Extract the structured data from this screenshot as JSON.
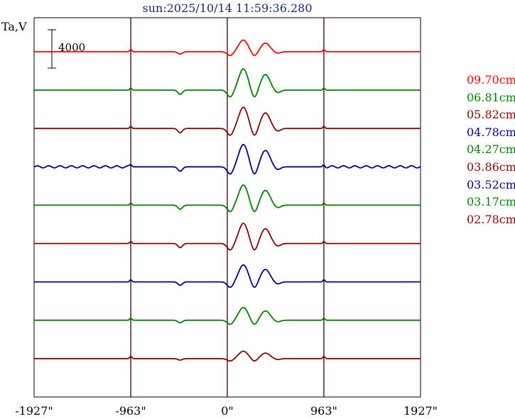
{
  "header": {
    "title": "sun:2025/10/14 11:59:36.280",
    "ylabel": "Ta,V",
    "scale_label": "4000"
  },
  "chart_data": {
    "type": "line",
    "title": "sun:2025/10/14 11:59:36.280",
    "ylabel": "Ta,V",
    "xlabel": "",
    "x_ticks": [
      {
        "value": -1927,
        "label": "-1927\""
      },
      {
        "value": -963,
        "label": "-963\""
      },
      {
        "value": 0,
        "label": "0\""
      },
      {
        "value": 963,
        "label": "963\""
      },
      {
        "value": 1927,
        "label": "1927\""
      }
    ],
    "xlim": [
      -1927,
      1927
    ],
    "vertical_lines_at": [
      -963,
      0,
      963
    ],
    "scale_bar_value": 4000,
    "series": [
      {
        "name": "09.70cm",
        "color": "#ff0000",
        "baseline_index": 0,
        "amp": 0.55
      },
      {
        "name": "06.81cm",
        "color": "#008000",
        "baseline_index": 1,
        "amp": 1.0
      },
      {
        "name": "05.82cm",
        "color": "#8b0000",
        "baseline_index": 2,
        "amp": 1.0
      },
      {
        "name": "04.78cm",
        "color": "#00008b",
        "baseline_index": 3,
        "amp": 1.05
      },
      {
        "name": "04.27cm",
        "color": "#008000",
        "baseline_index": 4,
        "amp": 0.95
      },
      {
        "name": "03.86cm",
        "color": "#8b0000",
        "baseline_index": 5,
        "amp": 0.95
      },
      {
        "name": "03.52cm",
        "color": "#00008b",
        "baseline_index": 6,
        "amp": 0.8
      },
      {
        "name": "03.17cm",
        "color": "#008000",
        "baseline_index": 7,
        "amp": 0.6
      },
      {
        "name": "02.78cm",
        "color": "#8b0000",
        "baseline_index": 8,
        "amp": 0.35
      }
    ]
  }
}
